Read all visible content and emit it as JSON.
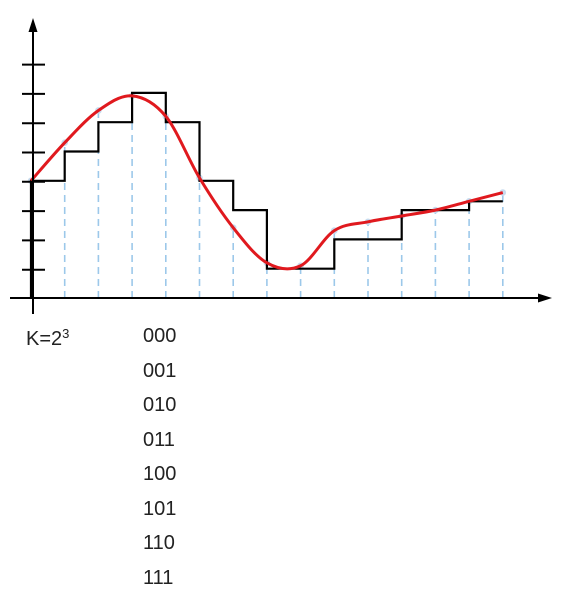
{
  "label": {
    "base": "K=2",
    "exponent": "3"
  },
  "codes": [
    "000",
    "001",
    "010",
    "011",
    "100",
    "101",
    "110",
    "111"
  ],
  "colors": {
    "axis": "#000000",
    "signal": "#e0191e",
    "staircase": "#000000",
    "sample_line": "#9cc8ea",
    "sample_dot": "#c8dcef"
  },
  "diagram": {
    "levels": 8,
    "samples": 15,
    "signal": [
      4,
      5.3,
      6.4,
      6.9,
      6.2,
      4.1,
      2.4,
      1.2,
      1.1,
      2.3,
      2.6,
      2.8,
      3.0,
      3.3,
      3.6
    ],
    "steps": [
      4,
      5,
      6,
      7,
      6,
      4,
      3,
      1,
      1,
      2,
      2,
      3,
      3,
      3.3,
      3.3
    ]
  }
}
